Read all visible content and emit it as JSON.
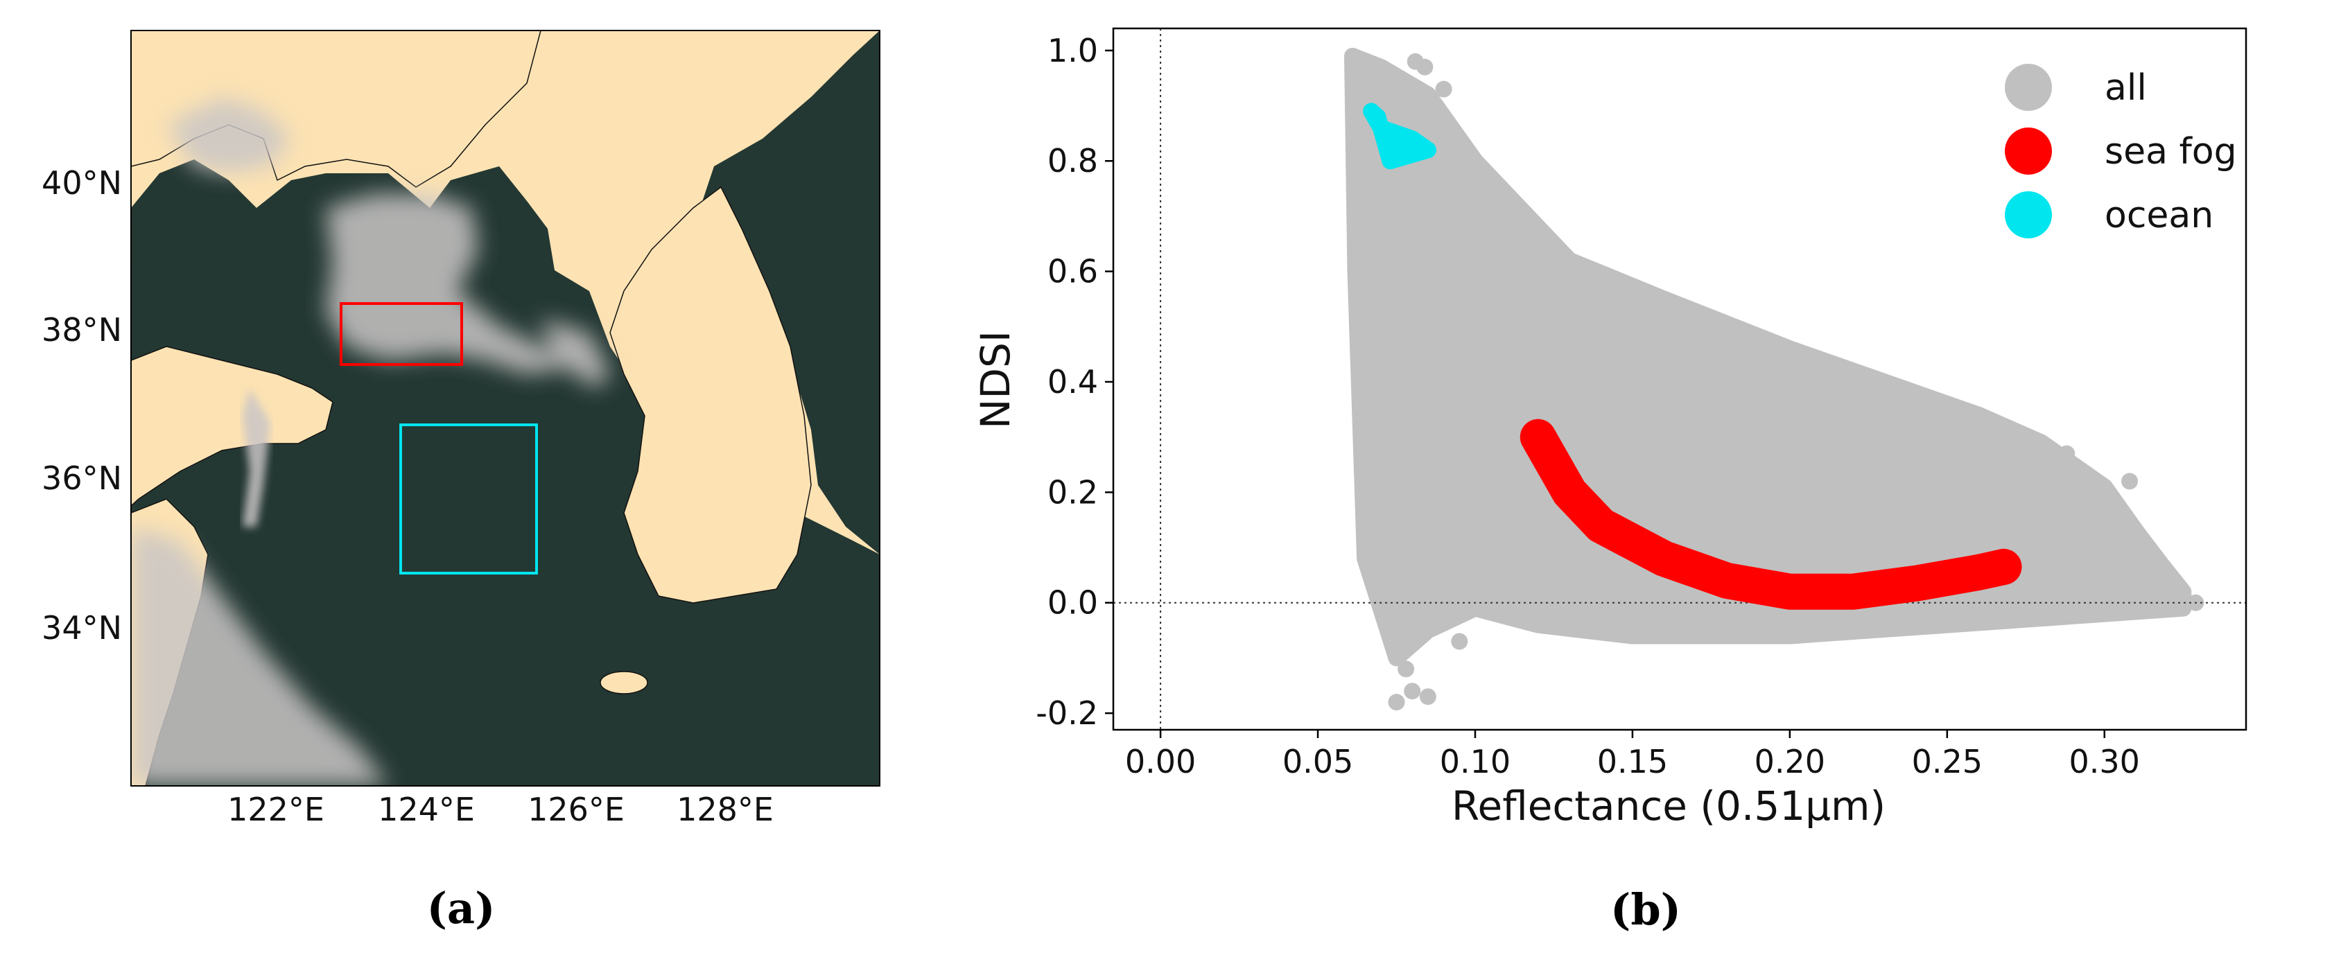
{
  "panel_a": {
    "label": "(a)",
    "lat_labels": [
      "40°N",
      "38°N",
      "36°N",
      "34°N"
    ],
    "lon_labels": [
      "122°E",
      "124°E",
      "126°E",
      "128°E"
    ],
    "land_color": "#fde3b3",
    "sea_color": "#243833",
    "fog_color": "#c9c5c6",
    "boxes": [
      {
        "name": "sea-fog-region",
        "color": "#ff0000"
      },
      {
        "name": "ocean-region",
        "color": "#00e5ee"
      }
    ]
  },
  "panel_b": {
    "label": "(b)"
  },
  "chart_data": {
    "type": "scatter",
    "title": "",
    "xlabel": "Reflectance (0.51μm)",
    "ylabel": "NDSI",
    "xlim": [
      -0.015,
      0.345
    ],
    "ylim": [
      -0.23,
      1.04
    ],
    "x_ticks": [
      0.0,
      0.05,
      0.1,
      0.15,
      0.2,
      0.25,
      0.3
    ],
    "x_tick_labels": [
      "0.00",
      "0.05",
      "0.10",
      "0.15",
      "0.20",
      "0.25",
      "0.30"
    ],
    "y_ticks": [
      -0.2,
      0.0,
      0.2,
      0.4,
      0.6,
      0.8,
      1.0
    ],
    "y_tick_labels": [
      "-0.2",
      "0.0",
      "0.2",
      "0.4",
      "0.6",
      "0.8",
      "1.0"
    ],
    "reference_lines": [
      {
        "axis": "x",
        "value": 0.0
      },
      {
        "axis": "y",
        "value": 0.0
      }
    ],
    "legend_position": "top-right",
    "series": [
      {
        "name": "all",
        "color": "#c0c0c0",
        "upper_envelope": [
          [
            0.061,
            0.99
          ],
          [
            0.07,
            0.97
          ],
          [
            0.085,
            0.92
          ],
          [
            0.1,
            0.8
          ],
          [
            0.13,
            0.62
          ],
          [
            0.16,
            0.55
          ],
          [
            0.2,
            0.46
          ],
          [
            0.24,
            0.38
          ],
          [
            0.26,
            0.34
          ],
          [
            0.28,
            0.29
          ],
          [
            0.3,
            0.21
          ],
          [
            0.31,
            0.13
          ],
          [
            0.318,
            0.07
          ],
          [
            0.325,
            0.02
          ]
        ],
        "lower_envelope": [
          [
            0.325,
            -0.01
          ],
          [
            0.3,
            -0.02
          ],
          [
            0.25,
            -0.04
          ],
          [
            0.2,
            -0.06
          ],
          [
            0.15,
            -0.06
          ],
          [
            0.12,
            -0.04
          ],
          [
            0.1,
            -0.01
          ],
          [
            0.085,
            -0.05
          ],
          [
            0.075,
            -0.1
          ],
          [
            0.065,
            0.08
          ],
          [
            0.062,
            0.6
          ]
        ],
        "outliers": [
          [
            0.075,
            -0.18
          ],
          [
            0.08,
            -0.16
          ],
          [
            0.085,
            -0.17
          ],
          [
            0.078,
            -0.12
          ],
          [
            0.095,
            -0.07
          ],
          [
            0.329,
            0.0
          ],
          [
            0.312,
            0.06
          ],
          [
            0.295,
            0.14
          ],
          [
            0.308,
            0.22
          ],
          [
            0.276,
            0.25
          ],
          [
            0.288,
            0.27
          ],
          [
            0.084,
            0.97
          ],
          [
            0.081,
            0.98
          ],
          [
            0.073,
            0.96
          ],
          [
            0.09,
            0.93
          ]
        ]
      },
      {
        "name": "sea fog",
        "color": "#ff0000",
        "centerline": [
          [
            0.12,
            0.3
          ],
          [
            0.13,
            0.2
          ],
          [
            0.14,
            0.14
          ],
          [
            0.16,
            0.08
          ],
          [
            0.18,
            0.04
          ],
          [
            0.2,
            0.02
          ],
          [
            0.22,
            0.02
          ],
          [
            0.24,
            0.035
          ],
          [
            0.26,
            0.055
          ],
          [
            0.268,
            0.065
          ]
        ]
      },
      {
        "name": "ocean",
        "color": "#00e5ee",
        "points": [
          [
            0.067,
            0.89
          ],
          [
            0.07,
            0.86
          ],
          [
            0.075,
            0.85
          ],
          [
            0.08,
            0.84
          ],
          [
            0.085,
            0.82
          ],
          [
            0.073,
            0.8
          ],
          [
            0.069,
            0.88
          ]
        ]
      }
    ]
  }
}
